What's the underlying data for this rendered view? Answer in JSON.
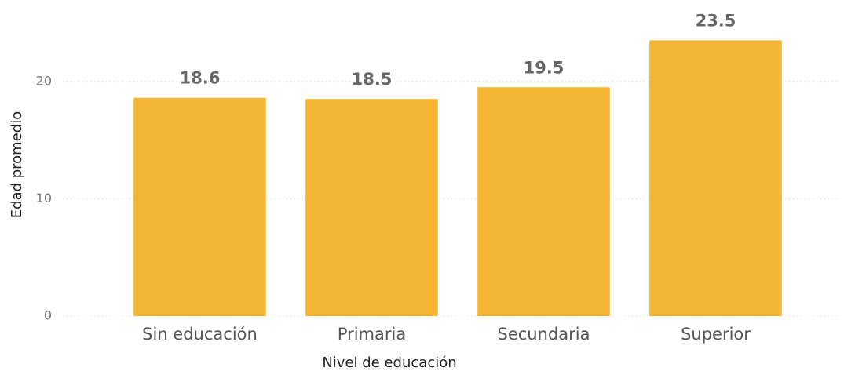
{
  "chart_data": {
    "type": "bar",
    "x_label": "Nivel de educación",
    "y_label": "Edad promedio",
    "categories": [
      "Sin educación",
      "Primaria",
      "Secundaria",
      "Superior"
    ],
    "values": [
      18.6,
      18.5,
      19.5,
      23.5
    ],
    "color": "#f4b434",
    "ylim": [
      0,
      25
    ],
    "yticks": [
      0,
      10,
      20
    ],
    "grid": true
  }
}
